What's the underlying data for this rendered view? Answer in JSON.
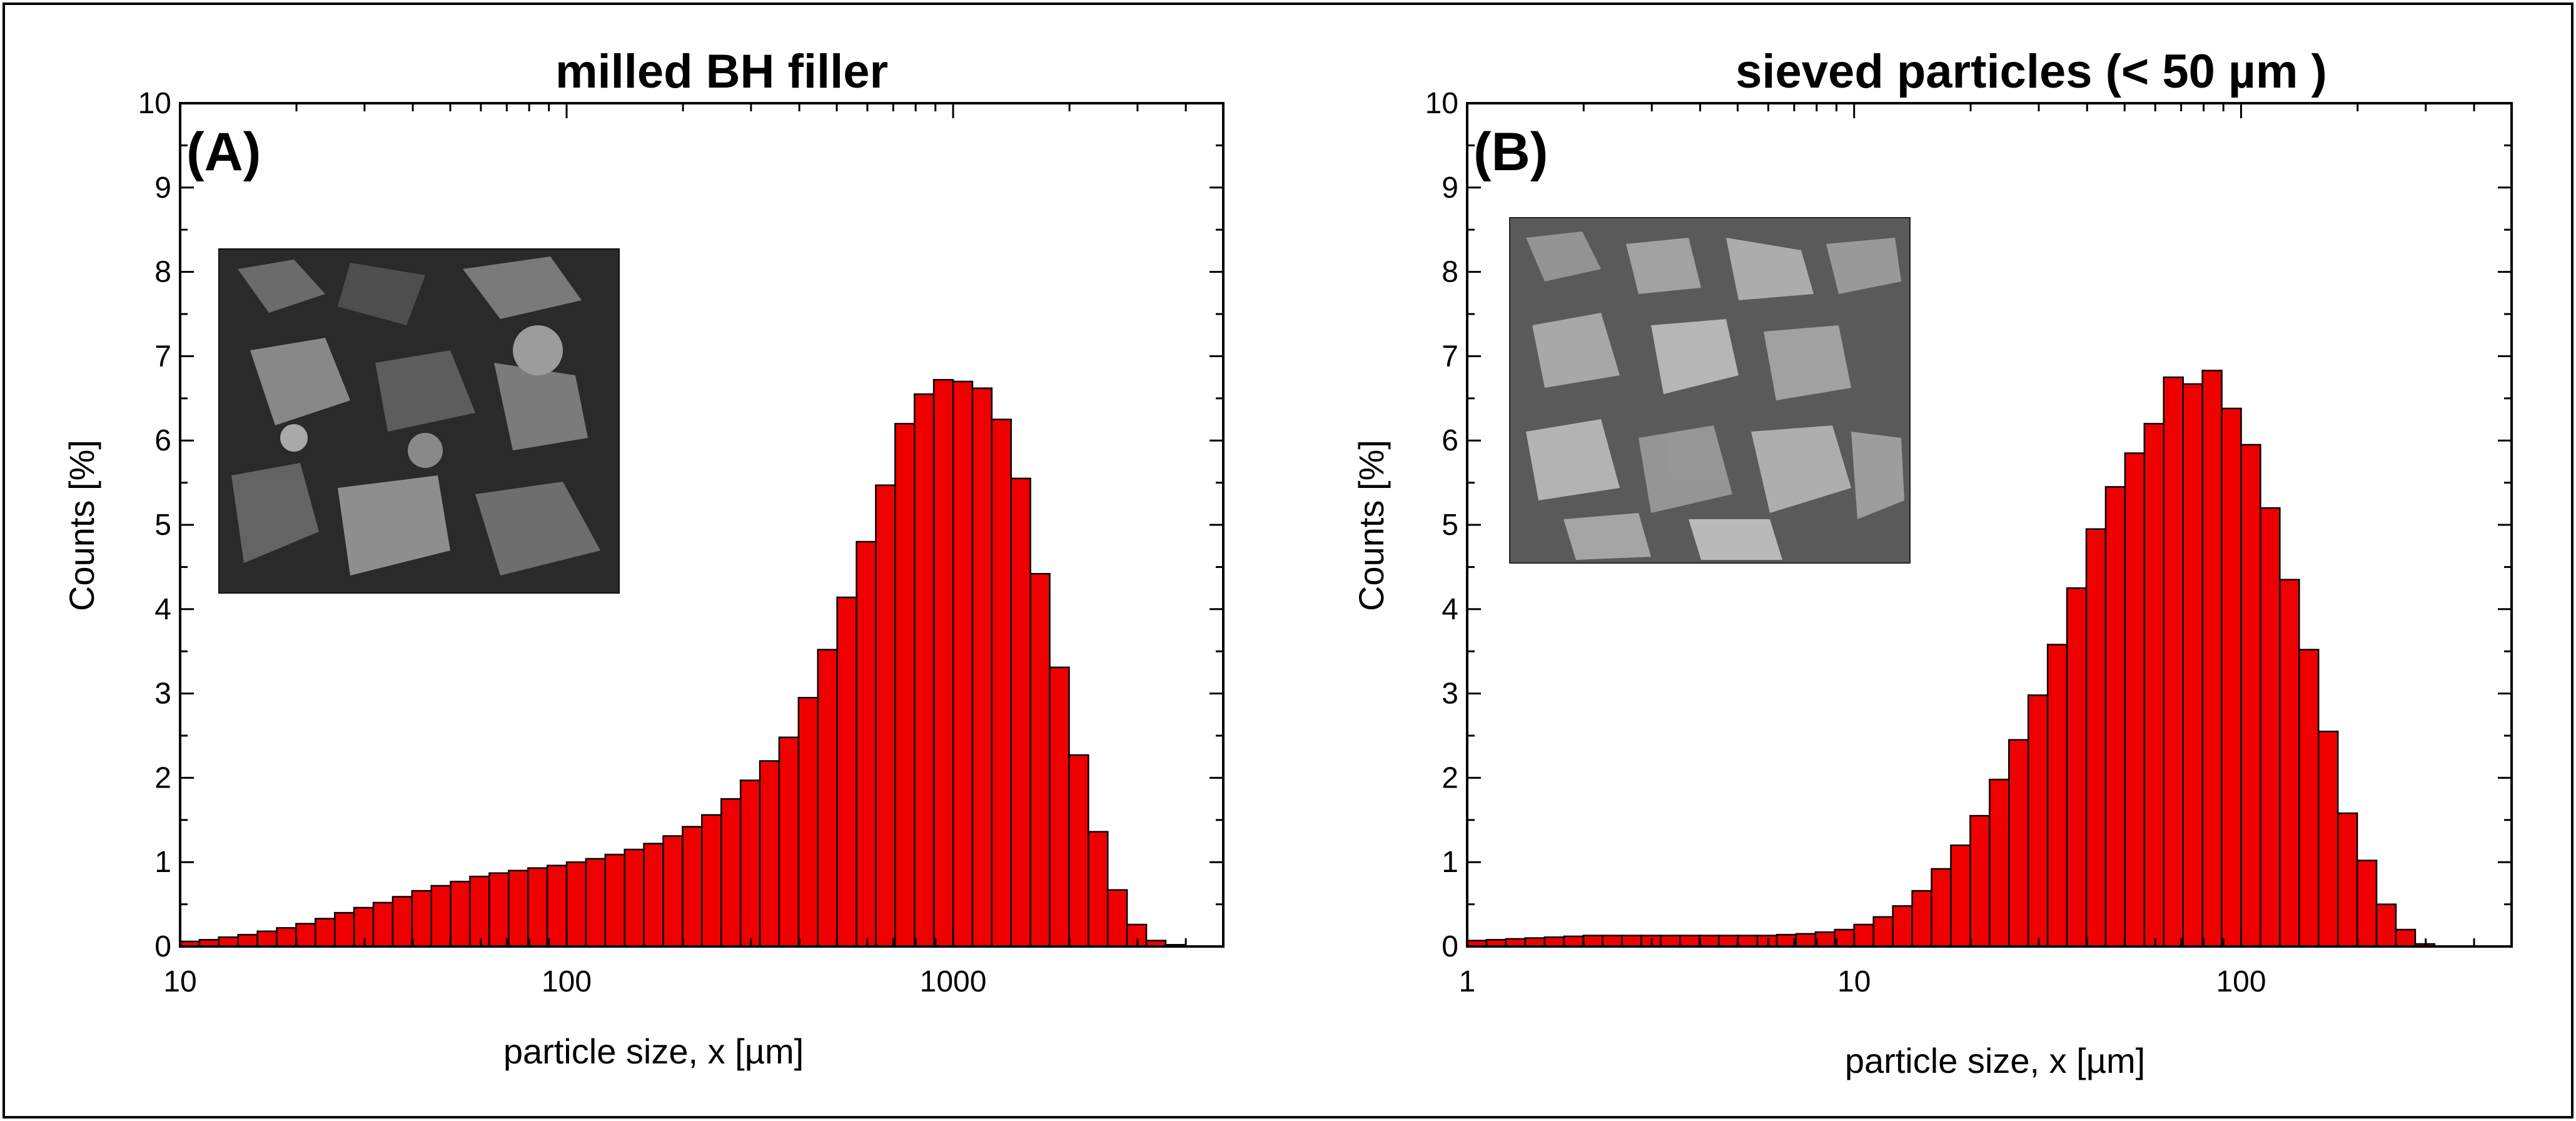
{
  "figure": {
    "panels": [
      "A",
      "B"
    ]
  },
  "colors": {
    "bar_fill": "#ee0000",
    "bar_stroke": "#000000",
    "axis": "#000000",
    "frame": "#000000",
    "micrograph_a": "#2a2a2a",
    "micrograph_b": "#5a5a5a"
  },
  "chart_data": [
    {
      "type": "bar",
      "panel": "A",
      "title": "milled BH filler",
      "panel_label": "(A)",
      "xlabel": "particle size, x [µm]",
      "ylabel": "Counts [%]",
      "xscale": "log",
      "xlim": [
        10,
        5000
      ],
      "ylim": [
        0,
        10
      ],
      "grid": false,
      "x_ticks": [
        {
          "value": 10,
          "label": "10"
        },
        {
          "value": 100,
          "label": "100"
        },
        {
          "value": 1000,
          "label": "1000"
        }
      ],
      "y_ticks": [
        {
          "value": 0,
          "label": "0"
        },
        {
          "value": 1,
          "label": "1"
        },
        {
          "value": 2,
          "label": "2"
        },
        {
          "value": 3,
          "label": "3"
        },
        {
          "value": 4,
          "label": "4"
        },
        {
          "value": 5,
          "label": "5"
        },
        {
          "value": 6,
          "label": "6"
        },
        {
          "value": 7,
          "label": "7"
        },
        {
          "value": 8,
          "label": "8"
        },
        {
          "value": 9,
          "label": "9"
        },
        {
          "value": 10,
          "label": "10"
        }
      ],
      "bins_per_decade": 20,
      "series": [
        {
          "name": "milled BH filler",
          "x_start": 10,
          "values": [
            0.06,
            0.08,
            0.11,
            0.14,
            0.18,
            0.22,
            0.27,
            0.33,
            0.4,
            0.46,
            0.52,
            0.59,
            0.66,
            0.72,
            0.77,
            0.83,
            0.87,
            0.9,
            0.93,
            0.96,
            1.0,
            1.04,
            1.09,
            1.15,
            1.22,
            1.31,
            1.42,
            1.56,
            1.75,
            1.97,
            2.2,
            2.48,
            2.95,
            3.52,
            4.14,
            4.8,
            5.47,
            6.2,
            6.55,
            6.72,
            6.7,
            6.62,
            6.25,
            5.55,
            4.42,
            3.31,
            2.27,
            1.36,
            0.67,
            0.26,
            0.07,
            0.02
          ]
        }
      ],
      "inset": {
        "type": "micrograph",
        "description_name": "sem-micrograph-milled"
      }
    },
    {
      "type": "bar",
      "panel": "B",
      "title": "sieved particles (< 50 µm )",
      "panel_label": "(B)",
      "xlabel": "particle size, x [µm]",
      "ylabel": "Counts [%]",
      "xscale": "log",
      "xlim": [
        1,
        500
      ],
      "ylim": [
        0,
        10
      ],
      "grid": false,
      "x_ticks": [
        {
          "value": 1,
          "label": "1"
        },
        {
          "value": 10,
          "label": "10"
        },
        {
          "value": 100,
          "label": "100"
        }
      ],
      "y_ticks": [
        {
          "value": 0,
          "label": "0"
        },
        {
          "value": 1,
          "label": "1"
        },
        {
          "value": 2,
          "label": "2"
        },
        {
          "value": 3,
          "label": "3"
        },
        {
          "value": 4,
          "label": "4"
        },
        {
          "value": 5,
          "label": "5"
        },
        {
          "value": 6,
          "label": "6"
        },
        {
          "value": 7,
          "label": "7"
        },
        {
          "value": 8,
          "label": "8"
        },
        {
          "value": 9,
          "label": "9"
        },
        {
          "value": 10,
          "label": "10"
        }
      ],
      "bins_per_decade": 20,
      "series": [
        {
          "name": "sieved particles",
          "x_start": 1,
          "values": [
            0.07,
            0.08,
            0.09,
            0.1,
            0.11,
            0.12,
            0.13,
            0.13,
            0.13,
            0.13,
            0.13,
            0.13,
            0.13,
            0.13,
            0.13,
            0.13,
            0.14,
            0.15,
            0.17,
            0.2,
            0.26,
            0.35,
            0.48,
            0.66,
            0.92,
            1.2,
            1.55,
            1.98,
            2.45,
            2.98,
            3.58,
            4.25,
            4.95,
            5.45,
            5.85,
            6.2,
            6.75,
            6.67,
            6.83,
            6.38,
            5.95,
            5.2,
            4.35,
            3.52,
            2.55,
            1.58,
            1.02,
            0.5,
            0.2,
            0.03
          ]
        }
      ],
      "inset": {
        "type": "micrograph",
        "description_name": "sem-micrograph-sieved"
      }
    }
  ]
}
